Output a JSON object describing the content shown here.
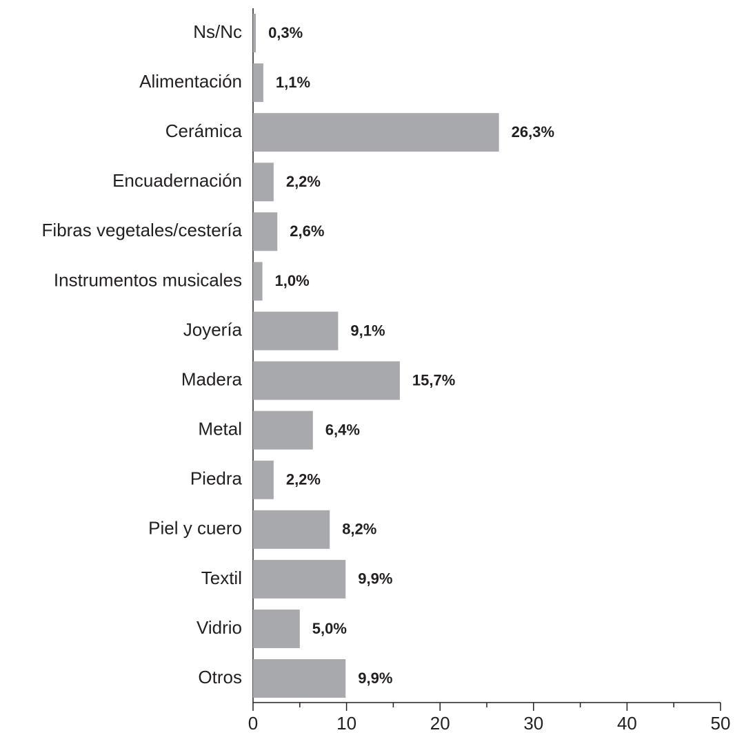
{
  "chart_data": {
    "type": "barh",
    "categories": [
      "Ns/Nc",
      "Alimentación",
      "Cerámica",
      "Encuadernación",
      "Fibras vegetales/cestería",
      "Instrumentos musicales",
      "Joyería",
      "Madera",
      "Metal",
      "Piedra",
      "Piel y cuero",
      "Textil",
      "Vidrio",
      "Otros"
    ],
    "values": [
      0.3,
      1.1,
      26.3,
      2.2,
      2.6,
      1.0,
      9.1,
      15.7,
      6.4,
      2.2,
      8.2,
      9.9,
      5.0,
      9.9
    ],
    "value_labels": [
      "0,3%",
      "1,1%",
      "26,3%",
      "2,2%",
      "2,6%",
      "1,0%",
      "9,1%",
      "15,7%",
      "6,4%",
      "2,2%",
      "8,2%",
      "9,9%",
      "5,0%",
      "9,9%"
    ],
    "color": "#a7a9ac",
    "xlim": [
      0,
      50
    ],
    "xticks": [
      0,
      10,
      20,
      30,
      40,
      50
    ],
    "xminorticks": [
      5,
      15,
      25,
      35,
      45
    ]
  }
}
